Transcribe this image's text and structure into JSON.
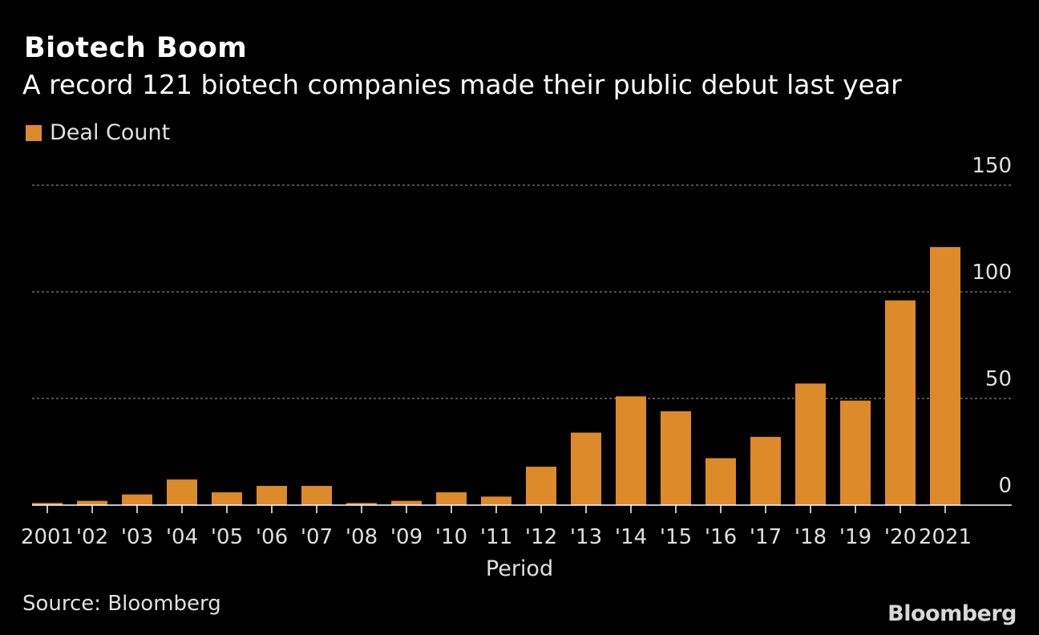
{
  "colors": {
    "background": "#000000",
    "bar": "#DD8A2A",
    "grid": "#808080",
    "axis": "#ffffff",
    "text": "#ffffff",
    "muted_text": "#e0e0e0"
  },
  "chart_data": {
    "type": "bar",
    "title": "Biotech Boom",
    "subtitle": "A record 121 biotech companies made their public debut last year",
    "legend": [
      "Deal Count"
    ],
    "xlabel": "Period",
    "ylabel": "",
    "ylim": [
      0,
      150
    ],
    "yticks": [
      0,
      50,
      100,
      150
    ],
    "y_axis_position": "right",
    "grid": true,
    "categories": [
      "2001",
      "'02",
      "'03",
      "'04",
      "'05",
      "'06",
      "'07",
      "'08",
      "'09",
      "'10",
      "'11",
      "'12",
      "'13",
      "'14",
      "'15",
      "'16",
      "'17",
      "'18",
      "'19",
      "'20",
      "2021"
    ],
    "series": [
      {
        "name": "Deal Count",
        "values": [
          1,
          2,
          5,
          12,
          6,
          9,
          9,
          1,
          2,
          6,
          4,
          18,
          34,
          51,
          44,
          22,
          32,
          57,
          49,
          96,
          121
        ]
      }
    ]
  },
  "source": "Source: Bloomberg",
  "brand": "Bloomberg"
}
